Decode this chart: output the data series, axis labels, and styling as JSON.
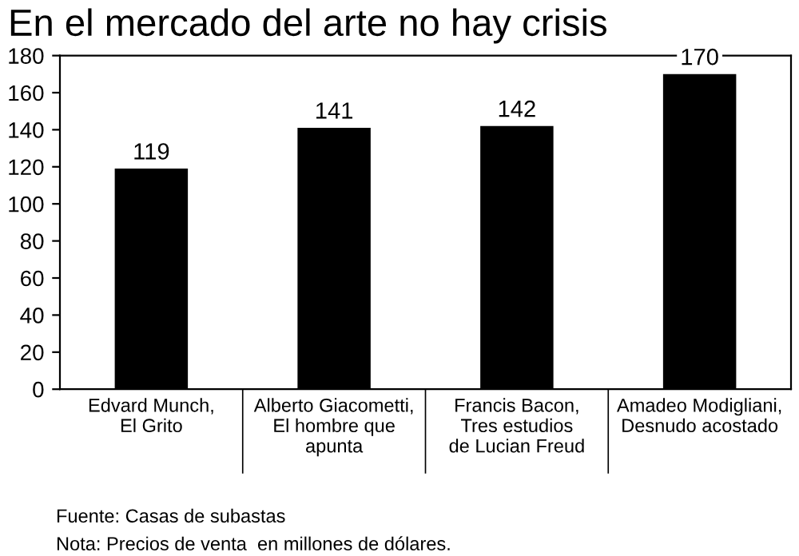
{
  "chart_data": {
    "type": "bar",
    "title": "En el mercado del arte no hay crisis",
    "categories": [
      "Edvard Munch,\nEl Grito",
      "Alberto Giacometti,\nEl hombre que\napunta",
      "Francis Bacon,\nTres estudios\nde Lucian Freud",
      "Amadeo Modigliani,\nDesnudo acostado"
    ],
    "values": [
      119,
      141,
      142,
      170
    ],
    "color": "#000000",
    "ylim": [
      0,
      180
    ],
    "yticks": [
      0,
      20,
      40,
      60,
      80,
      100,
      120,
      140,
      160,
      180
    ],
    "grid": false,
    "data_labels": true,
    "annotations": [
      "Fuente: Casas de subastas",
      "Nota: Precios de venta  en millones de dólares."
    ]
  }
}
